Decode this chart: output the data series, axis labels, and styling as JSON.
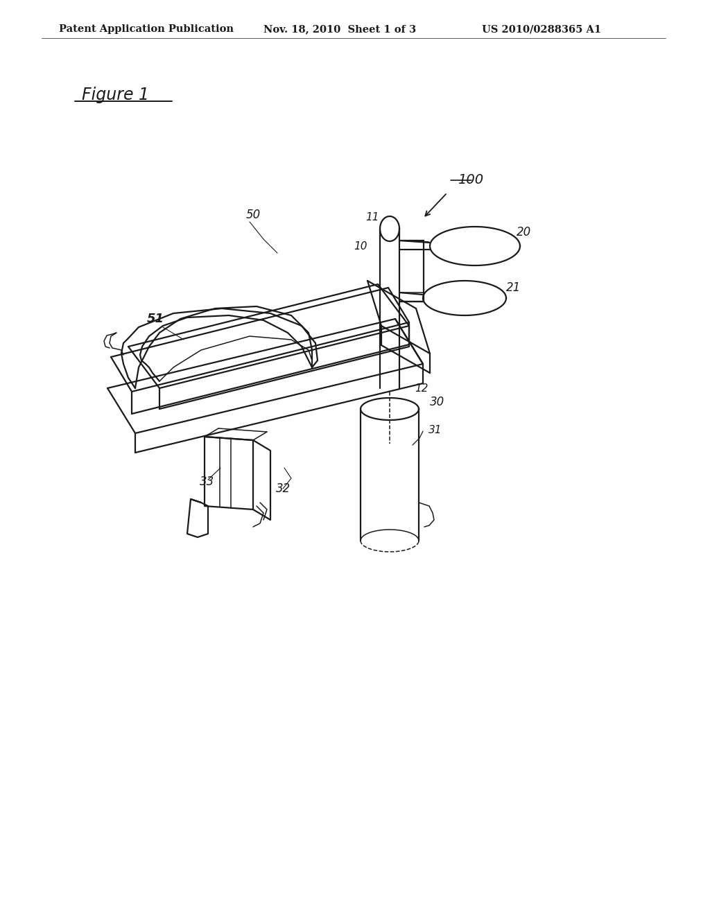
{
  "header_left": "Patent Application Publication",
  "header_center": "Nov. 18, 2010  Sheet 1 of 3",
  "header_right": "US 2010/0288365 A1",
  "figure_label": "Figure 1",
  "bg_color": "#ffffff",
  "line_color": "#1a1a1a",
  "header_fontsize": 10.5,
  "figure_label_fontsize": 17,
  "label_fontsize": 12
}
